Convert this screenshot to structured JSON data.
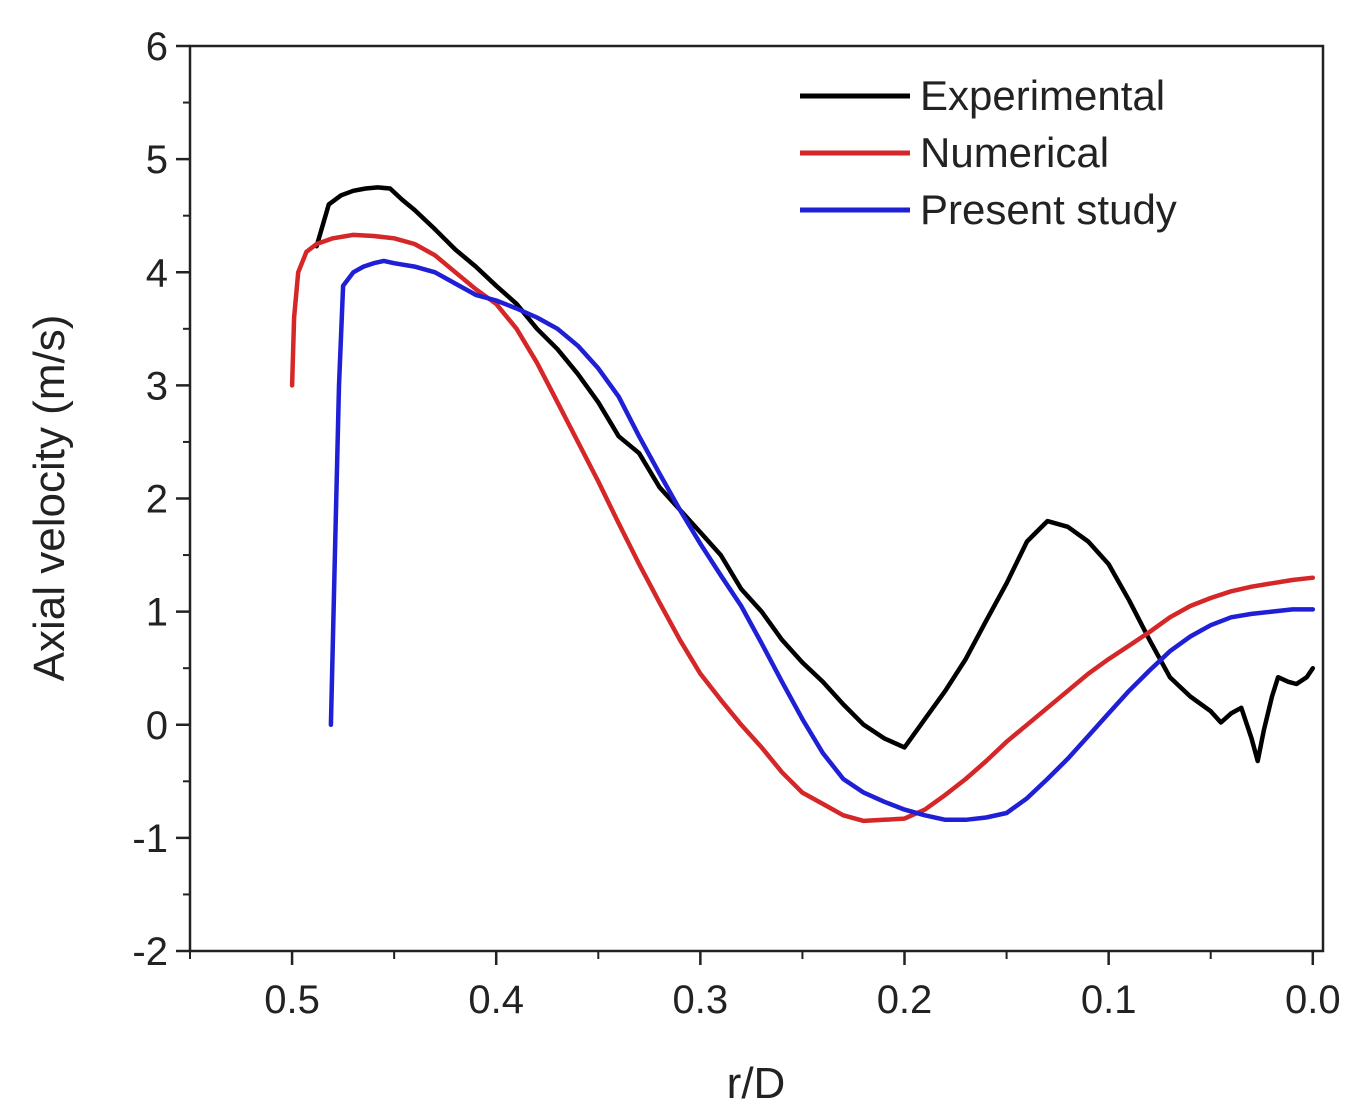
{
  "chart_data": {
    "type": "line",
    "title": "",
    "xlabel": "r/D",
    "ylabel": "Axial velocity (m/s)",
    "xlim": [
      0.55,
      -0.005
    ],
    "ylim": [
      -2,
      6
    ],
    "x_reversed": true,
    "grid": false,
    "legend_position": "top-right",
    "x_ticks": [
      0.5,
      0.4,
      0.3,
      0.2,
      0.1,
      0.0
    ],
    "x_tick_labels": [
      "0.5",
      "0.4",
      "0.3",
      "0.2",
      "0.1",
      "0.0"
    ],
    "y_ticks": [
      -2,
      -1,
      0,
      1,
      2,
      3,
      4,
      5,
      6
    ],
    "y_tick_labels": [
      "-2",
      "-1",
      "0",
      "1",
      "2",
      "3",
      "4",
      "5",
      "6"
    ],
    "series": [
      {
        "name": "Experimental",
        "color": "#000000",
        "points": [
          [
            0.488,
            4.23
          ],
          [
            0.482,
            4.6
          ],
          [
            0.476,
            4.68
          ],
          [
            0.47,
            4.72
          ],
          [
            0.464,
            4.74
          ],
          [
            0.458,
            4.75
          ],
          [
            0.452,
            4.74
          ],
          [
            0.446,
            4.64
          ],
          [
            0.44,
            4.55
          ],
          [
            0.43,
            4.38
          ],
          [
            0.42,
            4.2
          ],
          [
            0.41,
            4.05
          ],
          [
            0.4,
            3.88
          ],
          [
            0.39,
            3.72
          ],
          [
            0.38,
            3.5
          ],
          [
            0.37,
            3.32
          ],
          [
            0.36,
            3.1
          ],
          [
            0.35,
            2.85
          ],
          [
            0.34,
            2.55
          ],
          [
            0.33,
            2.4
          ],
          [
            0.32,
            2.1
          ],
          [
            0.31,
            1.9
          ],
          [
            0.3,
            1.7
          ],
          [
            0.29,
            1.5
          ],
          [
            0.28,
            1.2
          ],
          [
            0.27,
            1.0
          ],
          [
            0.26,
            0.75
          ],
          [
            0.25,
            0.55
          ],
          [
            0.24,
            0.38
          ],
          [
            0.23,
            0.18
          ],
          [
            0.22,
            0.0
          ],
          [
            0.21,
            -0.12
          ],
          [
            0.2,
            -0.2
          ],
          [
            0.19,
            0.05
          ],
          [
            0.18,
            0.3
          ],
          [
            0.17,
            0.58
          ],
          [
            0.16,
            0.92
          ],
          [
            0.15,
            1.25
          ],
          [
            0.14,
            1.62
          ],
          [
            0.13,
            1.8
          ],
          [
            0.12,
            1.75
          ],
          [
            0.11,
            1.62
          ],
          [
            0.1,
            1.42
          ],
          [
            0.09,
            1.1
          ],
          [
            0.08,
            0.75
          ],
          [
            0.07,
            0.42
          ],
          [
            0.06,
            0.25
          ],
          [
            0.05,
            0.12
          ],
          [
            0.045,
            0.02
          ],
          [
            0.04,
            0.1
          ],
          [
            0.035,
            0.15
          ],
          [
            0.03,
            -0.12
          ],
          [
            0.027,
            -0.32
          ],
          [
            0.024,
            -0.05
          ],
          [
            0.02,
            0.25
          ],
          [
            0.017,
            0.42
          ],
          [
            0.012,
            0.38
          ],
          [
            0.008,
            0.36
          ],
          [
            0.003,
            0.42
          ],
          [
            0.0,
            0.5
          ]
        ]
      },
      {
        "name": "Numerical",
        "color": "#d62728",
        "points": [
          [
            0.5,
            3.0
          ],
          [
            0.499,
            3.6
          ],
          [
            0.497,
            4.0
          ],
          [
            0.493,
            4.18
          ],
          [
            0.488,
            4.25
          ],
          [
            0.48,
            4.3
          ],
          [
            0.47,
            4.33
          ],
          [
            0.46,
            4.32
          ],
          [
            0.45,
            4.3
          ],
          [
            0.44,
            4.25
          ],
          [
            0.43,
            4.15
          ],
          [
            0.42,
            4.0
          ],
          [
            0.41,
            3.85
          ],
          [
            0.4,
            3.72
          ],
          [
            0.39,
            3.5
          ],
          [
            0.38,
            3.2
          ],
          [
            0.37,
            2.85
          ],
          [
            0.36,
            2.5
          ],
          [
            0.35,
            2.15
          ],
          [
            0.34,
            1.78
          ],
          [
            0.33,
            1.42
          ],
          [
            0.32,
            1.08
          ],
          [
            0.31,
            0.75
          ],
          [
            0.3,
            0.45
          ],
          [
            0.29,
            0.22
          ],
          [
            0.28,
            0.0
          ],
          [
            0.27,
            -0.2
          ],
          [
            0.26,
            -0.42
          ],
          [
            0.25,
            -0.6
          ],
          [
            0.24,
            -0.7
          ],
          [
            0.23,
            -0.8
          ],
          [
            0.22,
            -0.85
          ],
          [
            0.21,
            -0.84
          ],
          [
            0.2,
            -0.83
          ],
          [
            0.19,
            -0.75
          ],
          [
            0.18,
            -0.62
          ],
          [
            0.17,
            -0.48
          ],
          [
            0.16,
            -0.32
          ],
          [
            0.15,
            -0.15
          ],
          [
            0.14,
            0.0
          ],
          [
            0.13,
            0.15
          ],
          [
            0.12,
            0.3
          ],
          [
            0.11,
            0.45
          ],
          [
            0.1,
            0.58
          ],
          [
            0.09,
            0.7
          ],
          [
            0.08,
            0.82
          ],
          [
            0.07,
            0.95
          ],
          [
            0.06,
            1.05
          ],
          [
            0.05,
            1.12
          ],
          [
            0.04,
            1.18
          ],
          [
            0.03,
            1.22
          ],
          [
            0.02,
            1.25
          ],
          [
            0.01,
            1.28
          ],
          [
            0.0,
            1.3
          ]
        ]
      },
      {
        "name": "Present study",
        "color": "#1f1fd6",
        "points": [
          [
            0.481,
            0.0
          ],
          [
            0.479,
            1.5
          ],
          [
            0.477,
            3.0
          ],
          [
            0.475,
            3.88
          ],
          [
            0.47,
            4.0
          ],
          [
            0.465,
            4.05
          ],
          [
            0.46,
            4.08
          ],
          [
            0.455,
            4.1
          ],
          [
            0.45,
            4.08
          ],
          [
            0.44,
            4.05
          ],
          [
            0.43,
            4.0
          ],
          [
            0.42,
            3.9
          ],
          [
            0.41,
            3.8
          ],
          [
            0.4,
            3.75
          ],
          [
            0.39,
            3.68
          ],
          [
            0.38,
            3.6
          ],
          [
            0.37,
            3.5
          ],
          [
            0.36,
            3.35
          ],
          [
            0.35,
            3.15
          ],
          [
            0.34,
            2.9
          ],
          [
            0.33,
            2.55
          ],
          [
            0.32,
            2.22
          ],
          [
            0.31,
            1.9
          ],
          [
            0.3,
            1.6
          ],
          [
            0.29,
            1.32
          ],
          [
            0.28,
            1.05
          ],
          [
            0.27,
            0.72
          ],
          [
            0.26,
            0.38
          ],
          [
            0.25,
            0.05
          ],
          [
            0.24,
            -0.25
          ],
          [
            0.23,
            -0.48
          ],
          [
            0.22,
            -0.6
          ],
          [
            0.21,
            -0.68
          ],
          [
            0.2,
            -0.75
          ],
          [
            0.19,
            -0.8
          ],
          [
            0.18,
            -0.84
          ],
          [
            0.17,
            -0.84
          ],
          [
            0.16,
            -0.82
          ],
          [
            0.15,
            -0.78
          ],
          [
            0.14,
            -0.65
          ],
          [
            0.13,
            -0.48
          ],
          [
            0.12,
            -0.3
          ],
          [
            0.11,
            -0.1
          ],
          [
            0.1,
            0.1
          ],
          [
            0.09,
            0.3
          ],
          [
            0.08,
            0.48
          ],
          [
            0.07,
            0.65
          ],
          [
            0.06,
            0.78
          ],
          [
            0.05,
            0.88
          ],
          [
            0.04,
            0.95
          ],
          [
            0.03,
            0.98
          ],
          [
            0.02,
            1.0
          ],
          [
            0.01,
            1.02
          ],
          [
            0.0,
            1.02
          ]
        ]
      }
    ]
  }
}
